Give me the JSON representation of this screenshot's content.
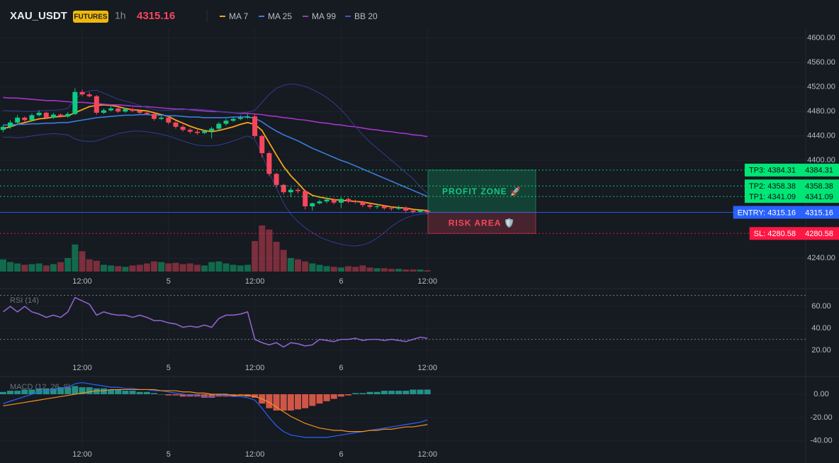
{
  "header": {
    "symbol": "XAU_USDT",
    "badge": "FUTURES",
    "interval": "1h",
    "price": 4315.16
  },
  "chart_data": [
    {
      "type": "candlestick",
      "categories": [
        null,
        null,
        null,
        null,
        null,
        null,
        null,
        null,
        null,
        null,
        null,
        "12:00",
        null,
        null,
        null,
        null,
        null,
        null,
        null,
        null,
        null,
        null,
        null,
        "5",
        null,
        null,
        null,
        null,
        null,
        null,
        null,
        null,
        null,
        null,
        null,
        "12:00",
        null,
        null,
        null,
        null,
        null,
        null,
        null,
        null,
        null,
        null,
        null,
        "6",
        null,
        null,
        null,
        null,
        null,
        null,
        null,
        null,
        null,
        null,
        null,
        "12:00"
      ],
      "open": [
        4450,
        4455,
        4462,
        4470,
        4466,
        4474,
        4478,
        4470,
        4475,
        4472,
        4476,
        4512,
        4508,
        4505,
        4478,
        4482,
        4485,
        4480,
        4484,
        4481,
        4478,
        4476,
        4468,
        4470,
        4462,
        4455,
        4450,
        4447,
        4445,
        4448,
        4452,
        4460,
        4465,
        4468,
        4470,
        4472,
        4440,
        4412,
        4378,
        4360,
        4348,
        4352,
        4350,
        4325,
        4330,
        4333,
        4336,
        4331,
        4337,
        4333,
        4332,
        4327,
        4324,
        4325,
        4322,
        4321,
        4323,
        4318,
        4316,
        4318
      ],
      "high": [
        4458,
        4466,
        4474,
        4472,
        4477,
        4482,
        4480,
        4478,
        4477,
        4479,
        4518,
        4516,
        4512,
        4507,
        4485,
        4488,
        4487,
        4486,
        4486,
        4483,
        4480,
        4478,
        4473,
        4472,
        4464,
        4458,
        4453,
        4450,
        4450,
        4455,
        4463,
        4468,
        4471,
        4474,
        4476,
        4476,
        4442,
        4415,
        4380,
        4362,
        4356,
        4355,
        4352,
        4331,
        4336,
        4339,
        4338,
        4340,
        4339,
        4336,
        4334,
        4329,
        4328,
        4327,
        4324,
        4326,
        4325,
        4320,
        4320,
        4320
      ],
      "low": [
        4446,
        4452,
        4459,
        4463,
        4464,
        4472,
        4468,
        4468,
        4470,
        4470,
        4474,
        4505,
        4503,
        4475,
        4476,
        4480,
        4478,
        4478,
        4479,
        4476,
        4474,
        4465,
        4466,
        4459,
        4452,
        4447,
        4444,
        4442,
        4443,
        4436,
        4449,
        4457,
        4463,
        4466,
        4468,
        4437,
        4405,
        4374,
        4356,
        4344,
        4340,
        4346,
        4320,
        4318,
        4328,
        4330,
        4328,
        4322,
        4330,
        4329,
        4324,
        4321,
        4321,
        4319,
        4318,
        4319,
        4314,
        4313,
        4314,
        4312
      ],
      "close": [
        4455,
        4462,
        4470,
        4466,
        4474,
        4478,
        4470,
        4475,
        4472,
        4476,
        4512,
        4508,
        4505,
        4478,
        4482,
        4485,
        4480,
        4484,
        4481,
        4478,
        4476,
        4468,
        4470,
        4462,
        4455,
        4450,
        4447,
        4445,
        4448,
        4452,
        4460,
        4465,
        4468,
        4470,
        4472,
        4440,
        4412,
        4378,
        4360,
        4348,
        4352,
        4350,
        4325,
        4330,
        4333,
        4336,
        4331,
        4337,
        4333,
        4332,
        4327,
        4324,
        4325,
        4322,
        4321,
        4323,
        4318,
        4316,
        4318,
        4315.16
      ],
      "volume": [
        18,
        14,
        12,
        10,
        11,
        12,
        9,
        11,
        14,
        20,
        40,
        30,
        18,
        16,
        10,
        9,
        8,
        7,
        9,
        10,
        12,
        15,
        14,
        12,
        13,
        11,
        12,
        10,
        9,
        14,
        15,
        12,
        10,
        9,
        10,
        45,
        68,
        62,
        44,
        32,
        20,
        18,
        15,
        12,
        10,
        8,
        7,
        6,
        8,
        7,
        9,
        6,
        5,
        5,
        4,
        4,
        3,
        3,
        3,
        2
      ],
      "candle_colors": {
        "up": "#0ecb81",
        "down": "#f6465d"
      },
      "series": [
        {
          "name": "MA 7",
          "color": "#f7a21b",
          "values": [
            4452,
            4455,
            4459,
            4462,
            4465,
            4468,
            4469,
            4471,
            4472,
            4473,
            4478,
            4483,
            4488,
            4490,
            4491,
            4490,
            4488,
            4485,
            4483,
            4482,
            4481,
            4478,
            4475,
            4472,
            4466,
            4461,
            4456,
            4452,
            4449,
            4447,
            4449,
            4452,
            4455,
            4459,
            4462,
            4459,
            4449,
            4429,
            4409,
            4390,
            4375,
            4363,
            4350,
            4343,
            4340,
            4338,
            4336,
            4335,
            4334,
            4333,
            4332,
            4330,
            4328,
            4326,
            4324,
            4323,
            4322,
            4320,
            4319,
            4318
          ]
        },
        {
          "name": "MA 25",
          "color": "#3b7ddd",
          "values": [
            4458,
            4458,
            4459,
            4459,
            4460,
            4460,
            4461,
            4461,
            4462,
            4462,
            4464,
            4466,
            4468,
            4470,
            4471,
            4472,
            4473,
            4474,
            4474,
            4475,
            4475,
            4474,
            4474,
            4473,
            4473,
            4472,
            4471,
            4471,
            4470,
            4470,
            4470,
            4470,
            4471,
            4471,
            4471,
            4469,
            4463,
            4455,
            4448,
            4442,
            4437,
            4432,
            4426,
            4420,
            4415,
            4410,
            4405,
            4400,
            4396,
            4391,
            4386,
            4381,
            4376,
            4371,
            4366,
            4361,
            4356,
            4351,
            4346,
            4341
          ]
        },
        {
          "name": "MA 99",
          "color": "#a535c8",
          "values": [
            4503,
            4502,
            4502,
            4501,
            4500,
            4499,
            4498,
            4498,
            4497,
            4496,
            4495,
            4495,
            4494,
            4493,
            4492,
            4491,
            4491,
            4490,
            4489,
            4488,
            4488,
            4487,
            4486,
            4485,
            4484,
            4484,
            4483,
            4482,
            4481,
            4480,
            4480,
            4479,
            4478,
            4477,
            4477,
            4476,
            4475,
            4473,
            4472,
            4470,
            4469,
            4467,
            4466,
            4464,
            4462,
            4461,
            4459,
            4458,
            4456,
            4455,
            4453,
            4451,
            4450,
            4448,
            4447,
            4445,
            4444,
            4442,
            4441,
            4439
          ]
        },
        {
          "name": "BB 20",
          "color": "#2f3f8f",
          "upper": [
            4482,
            4481,
            4481,
            4480,
            4480,
            4481,
            4482,
            4482,
            4483,
            4485,
            4500,
            4510,
            4514,
            4515,
            4510,
            4505,
            4500,
            4497,
            4494,
            4490,
            4486,
            4483,
            4482,
            4482,
            4483,
            4483,
            4484,
            4484,
            4483,
            4482,
            4480,
            4479,
            4478,
            4478,
            4479,
            4482,
            4495,
            4508,
            4518,
            4523,
            4525,
            4524,
            4521,
            4516,
            4510,
            4503,
            4494,
            4483,
            4470,
            4455,
            4442,
            4430,
            4420,
            4410,
            4400,
            4390,
            4380,
            4370,
            4357,
            4346
          ],
          "lower": [
            4438,
            4438,
            4437,
            4438,
            4440,
            4442,
            4443,
            4444,
            4443,
            4442,
            4435,
            4432,
            4431,
            4432,
            4436,
            4440,
            4444,
            4446,
            4448,
            4448,
            4447,
            4445,
            4443,
            4440,
            4436,
            4432,
            4428,
            4425,
            4424,
            4424,
            4425,
            4428,
            4432,
            4436,
            4440,
            4435,
            4410,
            4380,
            4355,
            4330,
            4312,
            4300,
            4290,
            4282,
            4275,
            4270,
            4266,
            4263,
            4261,
            4260,
            4262,
            4266,
            4273,
            4282,
            4292,
            4300,
            4306,
            4310,
            4312,
            4313
          ]
        }
      ],
      "ylim": [
        4216,
        4616
      ],
      "yticks": [
        {
          "value": 4600,
          "label": "4600.00"
        },
        {
          "value": 4560,
          "label": "4560.00"
        },
        {
          "value": 4520,
          "label": "4520.00"
        },
        {
          "value": 4480,
          "label": "4480.00"
        },
        {
          "value": 4440,
          "label": "4440.00"
        },
        {
          "value": 4400,
          "label": "4400.00"
        },
        {
          "value": 4240,
          "label": "4240.00"
        }
      ],
      "grid": true,
      "levels": [
        {
          "label": "TP3: 4384.31",
          "value": 4384.31,
          "color": "#00e676",
          "style": "dotted"
        },
        {
          "label": "TP2: 4358.38",
          "value": 4358.38,
          "color": "#00e676",
          "style": "dotted"
        },
        {
          "label": "TP1: 4341.09",
          "value": 4341.09,
          "color": "#00e676",
          "style": "dotted"
        },
        {
          "label": "ENTRY: 4315.16",
          "value": 4315.16,
          "color": "#2962ff",
          "style": "solid"
        },
        {
          "label": "SL: 4280.58",
          "value": 4280.58,
          "color": "#ff1744",
          "style": "dotted"
        }
      ],
      "zones": [
        {
          "label": "PROFIT ZONE 🚀",
          "from": 4384.31,
          "to": 4315.16,
          "color": "#0ecb81"
        },
        {
          "label": "RISK AREA 🛡️",
          "from": 4315.16,
          "to": 4280.58,
          "color": "#f6465d"
        }
      ]
    },
    {
      "type": "line",
      "title": "RSI (14)",
      "categories": [
        null,
        null,
        null,
        null,
        null,
        null,
        null,
        null,
        null,
        null,
        null,
        "12:00",
        null,
        null,
        null,
        null,
        null,
        null,
        null,
        null,
        null,
        null,
        null,
        "5",
        null,
        null,
        null,
        null,
        null,
        null,
        null,
        null,
        null,
        null,
        null,
        "12:00",
        null,
        null,
        null,
        null,
        null,
        null,
        null,
        null,
        null,
        null,
        null,
        "6",
        null,
        null,
        null,
        null,
        null,
        null,
        null,
        null,
        null,
        null,
        null,
        "12:00"
      ],
      "values": [
        55,
        60,
        55,
        60,
        55,
        53,
        50,
        52,
        50,
        55,
        68,
        65,
        62,
        52,
        55,
        53,
        52,
        52,
        50,
        52,
        50,
        47,
        47,
        45,
        44,
        41,
        42,
        41,
        43,
        41,
        49,
        52,
        52,
        53,
        55,
        30,
        27,
        25,
        27,
        23,
        27,
        26,
        24,
        25,
        30,
        29,
        28,
        30,
        30,
        31,
        29,
        30,
        30,
        29,
        30,
        29,
        28,
        30,
        32,
        31
      ],
      "color": "#8e63ce",
      "levels": [
        70,
        30
      ],
      "ylim": [
        13,
        71
      ],
      "yticks": [
        {
          "value": 60,
          "label": "60.00"
        },
        {
          "value": 40,
          "label": "40.00"
        },
        {
          "value": 20,
          "label": "20.00"
        }
      ]
    },
    {
      "type": "macd",
      "title": "MACD (12, 26, 9)",
      "categories": [
        null,
        null,
        null,
        null,
        null,
        null,
        null,
        null,
        null,
        null,
        null,
        "12:00",
        null,
        null,
        null,
        null,
        null,
        null,
        null,
        null,
        null,
        null,
        null,
        "5",
        null,
        null,
        null,
        null,
        null,
        null,
        null,
        null,
        null,
        null,
        null,
        "12:00",
        null,
        null,
        null,
        null,
        null,
        null,
        null,
        null,
        null,
        null,
        null,
        "6",
        null,
        null,
        null,
        null,
        null,
        null,
        null,
        null,
        null,
        null,
        null,
        "12:00"
      ],
      "series": [
        {
          "color": "#2962ff",
          "values": [
            -8,
            -6,
            -4,
            -2,
            0,
            2,
            3,
            4,
            5,
            6,
            9,
            10,
            9,
            8,
            7,
            6,
            6,
            5,
            5,
            4,
            4,
            3,
            3,
            2,
            1,
            0,
            -1,
            -1,
            -2,
            -2,
            -1,
            -1,
            -2,
            -2,
            -3,
            -5,
            -12,
            -20,
            -27,
            -32,
            -35,
            -36,
            -37,
            -37,
            -37,
            -37,
            -36,
            -35,
            -34,
            -33,
            -32,
            -31,
            -30,
            -29,
            -28,
            -27,
            -26,
            -25,
            -24,
            -22
          ]
        },
        {
          "color": "#f7931a",
          "values": [
            -10,
            -9,
            -8,
            -7,
            -6,
            -5,
            -4,
            -3,
            -2,
            -1,
            0,
            1,
            2,
            3,
            3,
            4,
            4,
            4,
            4,
            4,
            4,
            4,
            3,
            3,
            3,
            2,
            2,
            1,
            1,
            0,
            0,
            0,
            -1,
            -1,
            -1,
            -2,
            -4,
            -7,
            -11,
            -15,
            -19,
            -22,
            -25,
            -27,
            -29,
            -30,
            -31,
            -31,
            -32,
            -32,
            -32,
            -31,
            -31,
            -30,
            -30,
            -29,
            -28,
            -28,
            -27,
            -26
          ]
        }
      ],
      "histogram": [
        2,
        3,
        3,
        4,
        4,
        5,
        5,
        5,
        6,
        6,
        7,
        6,
        6,
        5,
        5,
        4,
        4,
        3,
        3,
        2,
        2,
        1,
        0,
        -1,
        -1,
        -2,
        -2,
        -2,
        -3,
        -3,
        -2,
        -2,
        -2,
        -1,
        -2,
        -3,
        -8,
        -12,
        -14,
        -14,
        -14,
        -13,
        -12,
        -10,
        -8,
        -6,
        -4,
        -2,
        -1,
        1,
        1,
        2,
        2,
        3,
        3,
        3,
        3,
        4,
        4,
        4
      ],
      "histogram_colors": {
        "up": "#26a69a",
        "down": "#f0624d"
      },
      "ylim": [
        -45,
        14
      ],
      "yticks": [
        {
          "value": 0,
          "label": "0.00"
        },
        {
          "value": -20,
          "label": "-20.00"
        },
        {
          "value": -40,
          "label": "-40.00"
        }
      ]
    }
  ]
}
